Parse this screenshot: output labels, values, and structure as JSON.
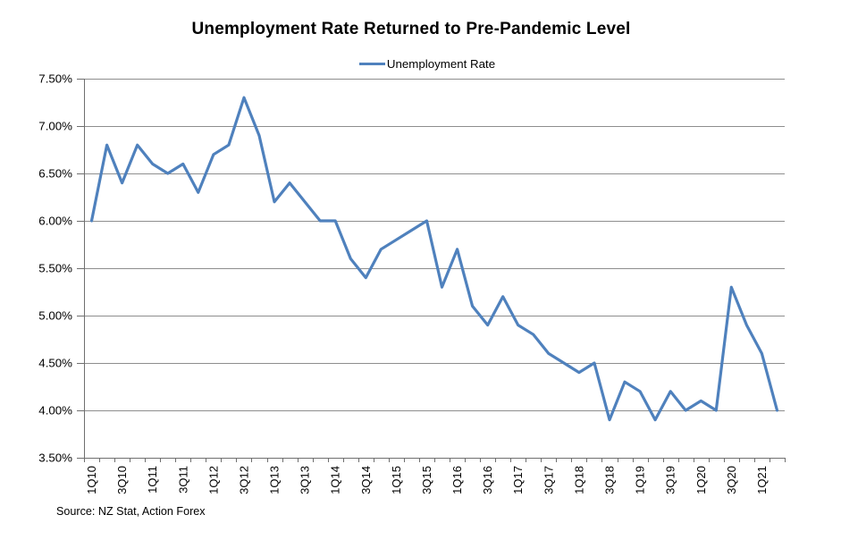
{
  "page": {
    "background": "#ffffff"
  },
  "chart_data": {
    "type": "line",
    "title": "Unemployment Rate Returned to Pre-Pandemic Level",
    "legend": [
      {
        "name": "Unemployment Rate",
        "color": "#4f81bd"
      }
    ],
    "legend_position": "top",
    "source_note": "Source: NZ Stat, Action Forex",
    "grid": true,
    "x": [
      "1Q10",
      "2Q10",
      "3Q10",
      "4Q10",
      "1Q11",
      "2Q11",
      "3Q11",
      "4Q11",
      "1Q12",
      "2Q12",
      "3Q12",
      "4Q12",
      "1Q13",
      "2Q13",
      "3Q13",
      "4Q13",
      "1Q14",
      "2Q14",
      "3Q14",
      "4Q14",
      "1Q15",
      "2Q15",
      "3Q15",
      "4Q15",
      "1Q16",
      "2Q16",
      "3Q16",
      "4Q16",
      "1Q17",
      "2Q17",
      "3Q17",
      "4Q17",
      "1Q18",
      "2Q18",
      "3Q18",
      "4Q18",
      "1Q19",
      "2Q19",
      "3Q19",
      "4Q19",
      "1Q20",
      "2Q20",
      "3Q20",
      "4Q20",
      "1Q21",
      "2Q21"
    ],
    "series": [
      {
        "name": "Unemployment Rate",
        "values": [
          6.0,
          6.8,
          6.4,
          6.8,
          6.6,
          6.5,
          6.6,
          6.3,
          6.7,
          6.8,
          7.3,
          6.9,
          6.2,
          6.4,
          6.2,
          6.0,
          6.0,
          5.6,
          5.4,
          5.7,
          5.8,
          5.9,
          6.0,
          5.3,
          5.7,
          5.1,
          4.9,
          5.2,
          4.9,
          4.8,
          4.6,
          4.5,
          4.4,
          4.5,
          3.9,
          4.3,
          4.2,
          3.9,
          4.2,
          4.0,
          4.1,
          4.0,
          5.3,
          4.9,
          4.6,
          4.0
        ]
      }
    ],
    "ylim": [
      3.5,
      7.5
    ],
    "ytick_values": [
      7.5,
      7.0,
      6.5,
      6.0,
      5.5,
      5.0,
      4.5,
      4.0,
      3.5
    ],
    "ytick_labels": [
      "7.50%",
      "7.00%",
      "6.50%",
      "6.00%",
      "5.50%",
      "5.00%",
      "4.50%",
      "4.00%",
      "3.50%"
    ],
    "xtick_labels_visible": [
      "1Q10",
      "3Q10",
      "1Q11",
      "3Q11",
      "1Q12",
      "3Q12",
      "1Q13",
      "3Q13",
      "1Q14",
      "3Q14",
      "1Q15",
      "3Q15",
      "1Q16",
      "3Q16",
      "1Q17",
      "3Q17",
      "1Q18",
      "3Q18",
      "1Q19",
      "3Q19",
      "1Q20",
      "3Q20",
      "1Q21"
    ],
    "xtick_label_every": 2,
    "colors": {
      "line": "#4f81bd",
      "grid": "#8e8e8e",
      "axis": "#6f6f6f",
      "text": "#000000",
      "background": "#ffffff"
    }
  }
}
